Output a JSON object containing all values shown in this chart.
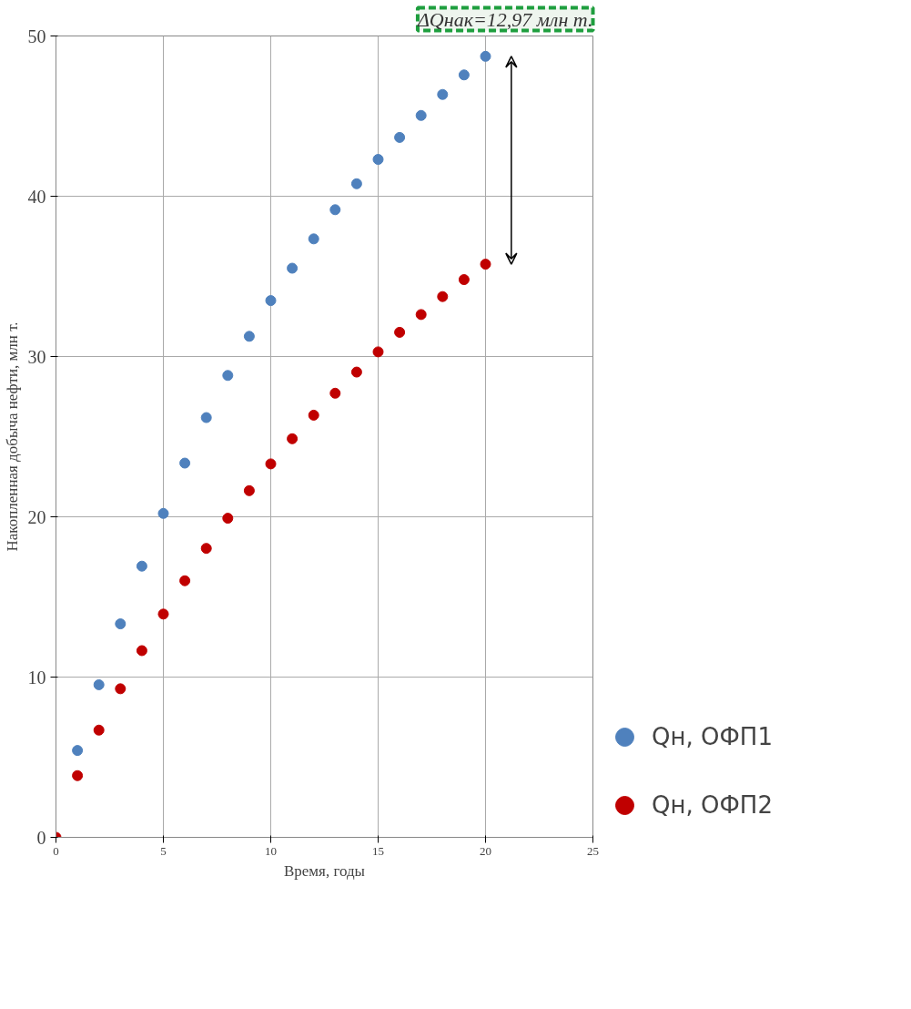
{
  "chart_data": {
    "type": "scatter",
    "xlabel": "Время, годы",
    "ylabel": "Накопленная добыча нефти, млн т.",
    "x": [
      0,
      1,
      2,
      3,
      4,
      5,
      6,
      7,
      8,
      9,
      10,
      11,
      12,
      13,
      14,
      15,
      16,
      17,
      18,
      19,
      20
    ],
    "series": [
      {
        "name": "Qн, ОФП1",
        "color": "#4f81bd",
        "values": [
          null,
          5.42,
          9.52,
          13.32,
          16.92,
          20.21,
          23.35,
          26.19,
          28.82,
          31.26,
          33.49,
          35.51,
          37.34,
          39.16,
          40.78,
          42.3,
          43.67,
          45.04,
          46.35,
          47.57,
          48.73
        ]
      },
      {
        "name": "Qн, ОФП2",
        "color": "#c00000",
        "values": [
          0,
          3.85,
          6.69,
          9.27,
          11.65,
          13.93,
          16.01,
          18.03,
          19.91,
          21.63,
          23.3,
          24.87,
          26.34,
          27.71,
          29.03,
          30.29,
          31.51,
          32.62,
          33.74,
          34.8,
          35.76
        ]
      }
    ],
    "xlim": [
      0,
      25
    ],
    "xticks": [
      0,
      5,
      10,
      15,
      20,
      25
    ],
    "ylim": [
      0,
      50
    ],
    "yticks": [
      0,
      10,
      20,
      30,
      40,
      50
    ],
    "grid": true,
    "legend": "bottom right",
    "marker": "circle",
    "annotations": [
      "ΔQнак=12,97 млн т."
    ]
  }
}
